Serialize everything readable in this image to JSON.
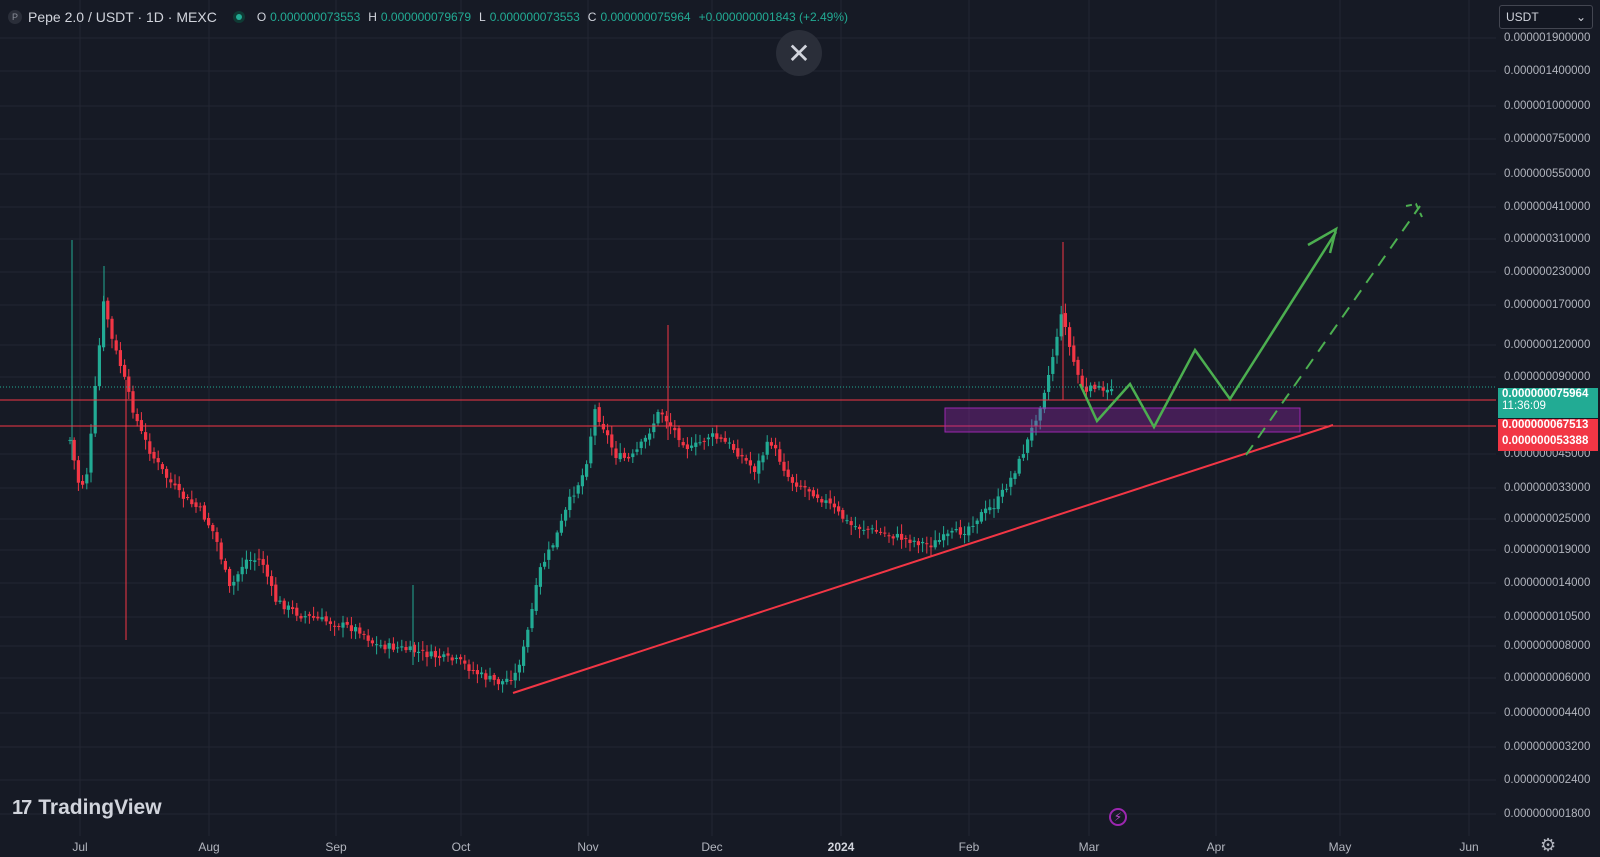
{
  "header": {
    "logo_letter": "P",
    "symbol_title": "Pepe 2.0 / USDT · 1D · MEXC",
    "ohlc": [
      {
        "key": "O",
        "value": "0.000000073553"
      },
      {
        "key": "H",
        "value": "0.000000079679"
      },
      {
        "key": "L",
        "value": "0.000000073553"
      },
      {
        "key": "C",
        "value": "0.000000075964"
      }
    ],
    "change": "+0.000000001843 (+2.49%)"
  },
  "close_icon": "✕",
  "currency_select": {
    "value": "USDT",
    "chevron": "⌄"
  },
  "price_axis": {
    "labels": [
      "0.000001900000",
      "0.000001400000",
      "0.000001000000",
      "0.000000750000",
      "0.000000550000",
      "0.000000410000",
      "0.000000310000",
      "0.000000230000",
      "0.000000170000",
      "0.000000120000",
      "0.000000090000",
      "0.000000045000",
      "0.000000033000",
      "0.000000025000",
      "0.000000019000",
      "0.000000014000",
      "0.000000010500",
      "0.000000008000",
      "0.000000006000",
      "0.000000004400",
      "0.000000003200",
      "0.000000002400",
      "0.000000001800"
    ],
    "last_price_tag": {
      "price": "0.000000075964",
      "countdown": "11:36:09",
      "color": "#22ab94"
    },
    "level_tags": [
      {
        "price": "0.000000067513",
        "color": "#f23645"
      },
      {
        "price": "0.000000053388",
        "color": "#f23645"
      }
    ]
  },
  "time_axis": {
    "labels": [
      {
        "text": "Jul",
        "bold": false
      },
      {
        "text": "Aug",
        "bold": false
      },
      {
        "text": "Sep",
        "bold": false
      },
      {
        "text": "Oct",
        "bold": false
      },
      {
        "text": "Nov",
        "bold": false
      },
      {
        "text": "Dec",
        "bold": false
      },
      {
        "text": "2024",
        "bold": true
      },
      {
        "text": "Feb",
        "bold": false
      },
      {
        "text": "Mar",
        "bold": false
      },
      {
        "text": "Apr",
        "bold": false
      },
      {
        "text": "May",
        "bold": false
      },
      {
        "text": "Jun",
        "bold": false
      }
    ]
  },
  "watermark": {
    "mark": "17",
    "text": "TradingView"
  },
  "bolt_icon": "⚡",
  "gear_icon": "⚙",
  "colors": {
    "background": "#161a25",
    "grid": "#232632",
    "up": "#22ab94",
    "down": "#f23645",
    "trendline": "#f23645",
    "projection": "#4caf50",
    "zone": "#9c27b0"
  },
  "chart_data": {
    "type": "candlestick",
    "scale": "log",
    "drawings": [
      "horizontal line 0.000000067513",
      "horizontal line 0.000000053388",
      "rising support trendline",
      "support/resistance zone",
      "projected zigzag path (green)",
      "dashed projection arrow (green)"
    ]
  }
}
